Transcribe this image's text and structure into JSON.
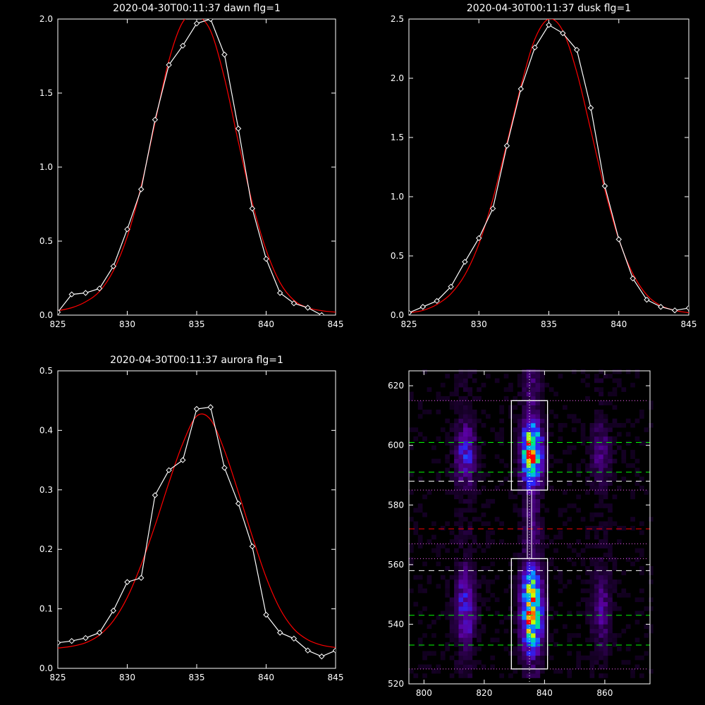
{
  "chart_data": [
    {
      "type": "line",
      "title": "2020-04-30T00:11:37 dawn flg=1",
      "xlim": [
        825,
        845
      ],
      "ylim": [
        0,
        2.0
      ],
      "xticks": [
        825,
        830,
        835,
        840,
        845
      ],
      "yticks": [
        0.0,
        0.5,
        1.0,
        1.5,
        2.0
      ],
      "ytick_labels": [
        "0.0",
        "0.5",
        "1.0",
        "1.5",
        "2.0"
      ],
      "series": [
        {
          "color": "#ffffff",
          "markers": "diamond",
          "x": [
            825,
            826,
            827,
            828,
            829,
            830,
            831,
            832,
            833,
            834,
            835,
            836,
            837,
            838,
            839,
            840,
            841,
            842,
            843,
            844
          ],
          "y": [
            0.02,
            0.14,
            0.15,
            0.18,
            0.33,
            0.58,
            0.85,
            1.32,
            1.69,
            1.82,
            1.97,
            2.0,
            1.76,
            1.26,
            0.72,
            0.38,
            0.15,
            0.08,
            0.05,
            0.0
          ]
        },
        {
          "color": "#ff0000",
          "fit": "gaussian",
          "x": [
            825,
            826,
            827,
            828,
            829,
            830,
            831,
            832,
            833,
            834,
            835,
            836,
            837,
            838,
            839,
            840,
            841,
            842,
            843,
            844,
            845
          ],
          "y": [
            0.03,
            0.05,
            0.09,
            0.16,
            0.3,
            0.53,
            0.87,
            1.3,
            1.72,
            1.98,
            2.02,
            1.92,
            1.6,
            1.17,
            0.76,
            0.44,
            0.22,
            0.1,
            0.05,
            0.03,
            0.02
          ]
        }
      ]
    },
    {
      "type": "line",
      "title": "2020-04-30T00:11:37 dusk flg=1",
      "xlim": [
        825,
        845
      ],
      "ylim": [
        0,
        2.5
      ],
      "xticks": [
        825,
        830,
        835,
        840,
        845
      ],
      "yticks": [
        0.0,
        0.5,
        1.0,
        1.5,
        2.0,
        2.5
      ],
      "ytick_labels": [
        "0.0",
        "0.5",
        "1.0",
        "1.5",
        "2.0",
        "2.5"
      ],
      "series": [
        {
          "color": "#ffffff",
          "markers": "diamond",
          "x": [
            825,
            826,
            827,
            828,
            829,
            830,
            831,
            832,
            833,
            834,
            835,
            836,
            837,
            838,
            839,
            840,
            841,
            842,
            843,
            844,
            845
          ],
          "y": [
            0.02,
            0.07,
            0.12,
            0.24,
            0.45,
            0.65,
            0.9,
            1.43,
            1.91,
            2.26,
            2.45,
            2.38,
            2.24,
            1.75,
            1.09,
            0.64,
            0.31,
            0.13,
            0.07,
            0.04,
            0.06
          ]
        },
        {
          "color": "#ff0000",
          "fit": "gaussian",
          "x": [
            825,
            826,
            827,
            828,
            829,
            830,
            831,
            832,
            833,
            834,
            835,
            836,
            837,
            838,
            839,
            840,
            841,
            842,
            843,
            844,
            845
          ],
          "y": [
            0.02,
            0.04,
            0.09,
            0.18,
            0.34,
            0.6,
            0.98,
            1.45,
            1.93,
            2.33,
            2.5,
            2.4,
            2.05,
            1.56,
            1.06,
            0.64,
            0.35,
            0.17,
            0.08,
            0.04,
            0.02
          ]
        }
      ]
    },
    {
      "type": "line",
      "title": "2020-04-30T00:11:37 aurora flg=1",
      "xlim": [
        825,
        845
      ],
      "ylim": [
        0,
        0.5
      ],
      "xticks": [
        825,
        830,
        835,
        840,
        845
      ],
      "yticks": [
        0.0,
        0.1,
        0.2,
        0.3,
        0.4,
        0.5
      ],
      "ytick_labels": [
        "0.0",
        "0.1",
        "0.2",
        "0.3",
        "0.4",
        "0.5"
      ],
      "series": [
        {
          "color": "#ffffff",
          "markers": "diamond",
          "x": [
            825,
            826,
            827,
            828,
            829,
            830,
            831,
            832,
            833,
            834,
            835,
            836,
            837,
            838,
            839,
            840,
            841,
            842,
            843,
            844,
            845
          ],
          "y": [
            0.043,
            0.046,
            0.051,
            0.06,
            0.097,
            0.145,
            0.152,
            0.291,
            0.333,
            0.35,
            0.436,
            0.439,
            0.337,
            0.277,
            0.205,
            0.09,
            0.06,
            0.05,
            0.03,
            0.02,
            0.03
          ]
        },
        {
          "color": "#ff0000",
          "fit": "gaussian",
          "x": [
            825,
            826,
            827,
            828,
            829,
            830,
            831,
            832,
            833,
            834,
            835,
            836,
            837,
            838,
            839,
            840,
            841,
            842,
            843,
            844,
            845
          ],
          "y": [
            0.034,
            0.037,
            0.043,
            0.056,
            0.08,
            0.119,
            0.174,
            0.24,
            0.312,
            0.378,
            0.424,
            0.418,
            0.366,
            0.296,
            0.222,
            0.153,
            0.1,
            0.066,
            0.048,
            0.039,
            0.035
          ]
        }
      ]
    },
    {
      "type": "heatmap",
      "xlim": [
        795,
        875
      ],
      "ylim": [
        520,
        625
      ],
      "xticks": [
        800,
        820,
        840,
        860
      ],
      "yticks": [
        520,
        540,
        560,
        580,
        600,
        620
      ],
      "spot_centers_x": [
        813,
        835,
        858
      ],
      "spot_relative_strength": [
        0.35,
        1.0,
        0.2
      ],
      "bright_bands_y": [
        [
          532,
          556
        ],
        [
          587,
          606
        ]
      ],
      "boxes": [
        {
          "x": [
            829,
            841
          ],
          "y": [
            525,
            562
          ]
        },
        {
          "x": [
            829,
            841
          ],
          "y": [
            585,
            615
          ]
        }
      ],
      "center_column_x": 835,
      "dotted_lines_y": [
        525,
        562,
        567,
        585,
        615
      ],
      "dashed_lines": [
        {
          "y": 601,
          "color": "#00ff00"
        },
        {
          "y": 591,
          "color": "#00ff00"
        },
        {
          "y": 588,
          "color": "#ffffff"
        },
        {
          "y": 572,
          "color": "#ff0000"
        },
        {
          "y": 558,
          "color": "#ffffff"
        },
        {
          "y": 543,
          "color": "#00ff00"
        },
        {
          "y": 533,
          "color": "#00ff00"
        }
      ]
    }
  ]
}
